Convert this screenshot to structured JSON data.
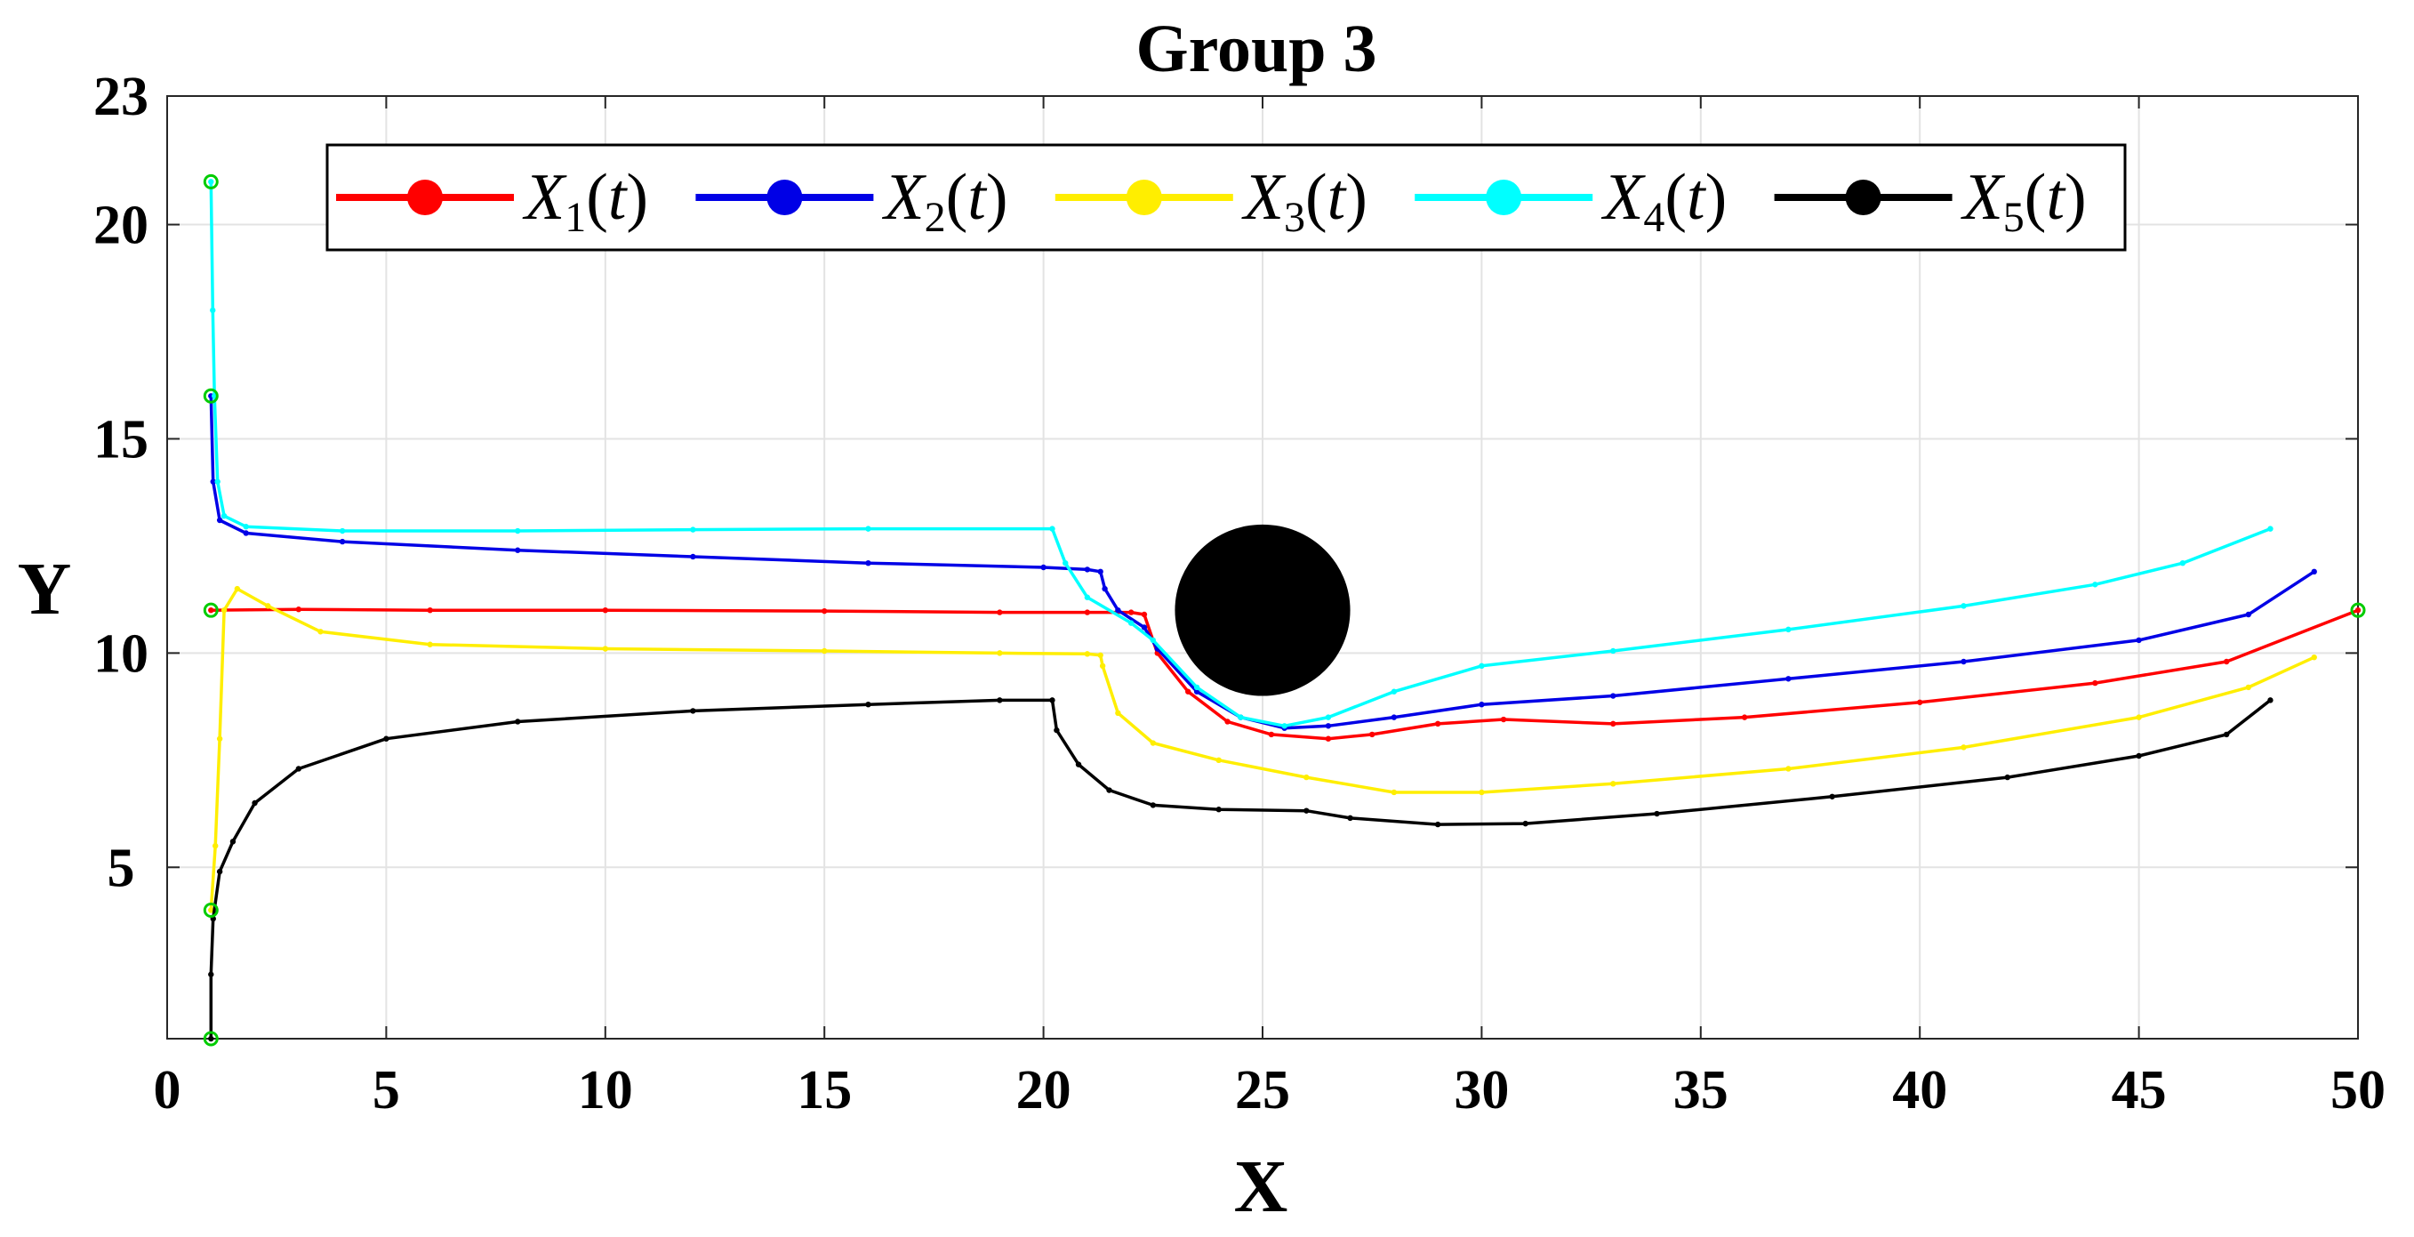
{
  "chart_data": {
    "type": "line",
    "title": "Group 3",
    "xlabel": "X",
    "ylabel": "Y",
    "xlim": [
      0,
      50
    ],
    "ylim": [
      1,
      23
    ],
    "xticks": [
      0,
      5,
      10,
      15,
      20,
      25,
      30,
      35,
      40,
      45,
      50
    ],
    "yticks": [
      5,
      10,
      15,
      20,
      23
    ],
    "grid": true,
    "legend_position": "top",
    "colors": {
      "grid": "#e3e3e3",
      "marker_edge": "#00cc00"
    },
    "obstacle": {
      "label": "obstacle",
      "cx": 25,
      "cy": 11,
      "rx": 2,
      "ry": 2,
      "color": "#000000"
    },
    "start_points": [
      [
        1,
        21
      ],
      [
        1,
        16
      ],
      [
        1,
        11
      ],
      [
        1,
        4
      ],
      [
        1,
        1
      ]
    ],
    "goal_point": [
      50,
      11
    ],
    "series": [
      {
        "name": "X1(t)",
        "base": "X",
        "sub": "1",
        "color": "#ff0000",
        "points": [
          [
            1,
            11
          ],
          [
            3,
            11.02
          ],
          [
            6,
            11
          ],
          [
            10,
            11
          ],
          [
            15,
            10.98
          ],
          [
            19,
            10.95
          ],
          [
            21,
            10.95
          ],
          [
            22,
            10.95
          ],
          [
            22.3,
            10.9
          ],
          [
            22.6,
            10
          ],
          [
            23.3,
            9.1
          ],
          [
            24.2,
            8.4
          ],
          [
            25.2,
            8.1
          ],
          [
            26.5,
            8.0
          ],
          [
            27.5,
            8.1
          ],
          [
            29,
            8.35
          ],
          [
            30.5,
            8.45
          ],
          [
            33,
            8.35
          ],
          [
            36,
            8.5
          ],
          [
            40,
            8.85
          ],
          [
            44,
            9.3
          ],
          [
            47,
            9.8
          ],
          [
            50,
            11
          ]
        ]
      },
      {
        "name": "X2(t)",
        "base": "X",
        "sub": "2",
        "color": "#0000e6",
        "points": [
          [
            1,
            16
          ],
          [
            1.05,
            14
          ],
          [
            1.2,
            13.1
          ],
          [
            1.8,
            12.8
          ],
          [
            4,
            12.6
          ],
          [
            8,
            12.4
          ],
          [
            12,
            12.25
          ],
          [
            16,
            12.1
          ],
          [
            20,
            12.0
          ],
          [
            21,
            11.95
          ],
          [
            21.3,
            11.9
          ],
          [
            21.4,
            11.5
          ],
          [
            21.7,
            11
          ],
          [
            22.3,
            10.6
          ],
          [
            22.6,
            10.1
          ],
          [
            23.5,
            9.1
          ],
          [
            24.5,
            8.5
          ],
          [
            25.5,
            8.25
          ],
          [
            26.5,
            8.3
          ],
          [
            28,
            8.5
          ],
          [
            30,
            8.8
          ],
          [
            33,
            9.0
          ],
          [
            37,
            9.4
          ],
          [
            41,
            9.8
          ],
          [
            45,
            10.3
          ],
          [
            47.5,
            10.9
          ],
          [
            49,
            11.9
          ]
        ]
      },
      {
        "name": "X3(t)",
        "base": "X",
        "sub": "3",
        "color": "#ffee00",
        "points": [
          [
            1,
            4
          ],
          [
            1.1,
            5.5
          ],
          [
            1.2,
            8
          ],
          [
            1.3,
            11
          ],
          [
            1.6,
            11.5
          ],
          [
            2.3,
            11.1
          ],
          [
            3.5,
            10.5
          ],
          [
            6,
            10.2
          ],
          [
            10,
            10.1
          ],
          [
            15,
            10.05
          ],
          [
            19,
            10.0
          ],
          [
            21,
            9.98
          ],
          [
            21.3,
            9.95
          ],
          [
            21.35,
            9.7
          ],
          [
            21.7,
            8.6
          ],
          [
            22.5,
            7.9
          ],
          [
            24,
            7.5
          ],
          [
            26,
            7.1
          ],
          [
            28,
            6.75
          ],
          [
            30,
            6.75
          ],
          [
            33,
            6.95
          ],
          [
            37,
            7.3
          ],
          [
            41,
            7.8
          ],
          [
            45,
            8.5
          ],
          [
            47.5,
            9.2
          ],
          [
            49,
            9.9
          ]
        ]
      },
      {
        "name": "X4(t)",
        "base": "X",
        "sub": "4",
        "color": "#00ffff",
        "points": [
          [
            1,
            21
          ],
          [
            1.04,
            18
          ],
          [
            1.08,
            16
          ],
          [
            1.15,
            14
          ],
          [
            1.3,
            13.2
          ],
          [
            1.8,
            12.95
          ],
          [
            4,
            12.85
          ],
          [
            8,
            12.85
          ],
          [
            12,
            12.88
          ],
          [
            16,
            12.9
          ],
          [
            20.2,
            12.9
          ],
          [
            20.5,
            12.1
          ],
          [
            21,
            11.3
          ],
          [
            22,
            10.7
          ],
          [
            22.5,
            10.3
          ],
          [
            23.5,
            9.2
          ],
          [
            24.5,
            8.5
          ],
          [
            25.5,
            8.3
          ],
          [
            26.5,
            8.5
          ],
          [
            28,
            9.1
          ],
          [
            30,
            9.7
          ],
          [
            33,
            10.05
          ],
          [
            37,
            10.55
          ],
          [
            41,
            11.1
          ],
          [
            44,
            11.6
          ],
          [
            46,
            12.1
          ],
          [
            48,
            12.9
          ]
        ]
      },
      {
        "name": "X5(t)",
        "base": "X",
        "sub": "5",
        "color": "#000000",
        "points": [
          [
            1,
            1
          ],
          [
            1,
            2.5
          ],
          [
            1.05,
            3.8
          ],
          [
            1.2,
            4.9
          ],
          [
            1.5,
            5.6
          ],
          [
            2,
            6.5
          ],
          [
            3,
            7.3
          ],
          [
            5,
            8.0
          ],
          [
            8,
            8.4
          ],
          [
            12,
            8.65
          ],
          [
            16,
            8.8
          ],
          [
            19,
            8.9
          ],
          [
            20.2,
            8.9
          ],
          [
            20.3,
            8.2
          ],
          [
            20.8,
            7.4
          ],
          [
            21.5,
            6.8
          ],
          [
            22.5,
            6.45
          ],
          [
            24,
            6.35
          ],
          [
            26,
            6.32
          ],
          [
            27,
            6.15
          ],
          [
            29,
            6.0
          ],
          [
            31,
            6.02
          ],
          [
            34,
            6.25
          ],
          [
            38,
            6.65
          ],
          [
            42,
            7.1
          ],
          [
            45,
            7.6
          ],
          [
            47,
            8.1
          ],
          [
            48,
            8.9
          ]
        ]
      }
    ]
  }
}
